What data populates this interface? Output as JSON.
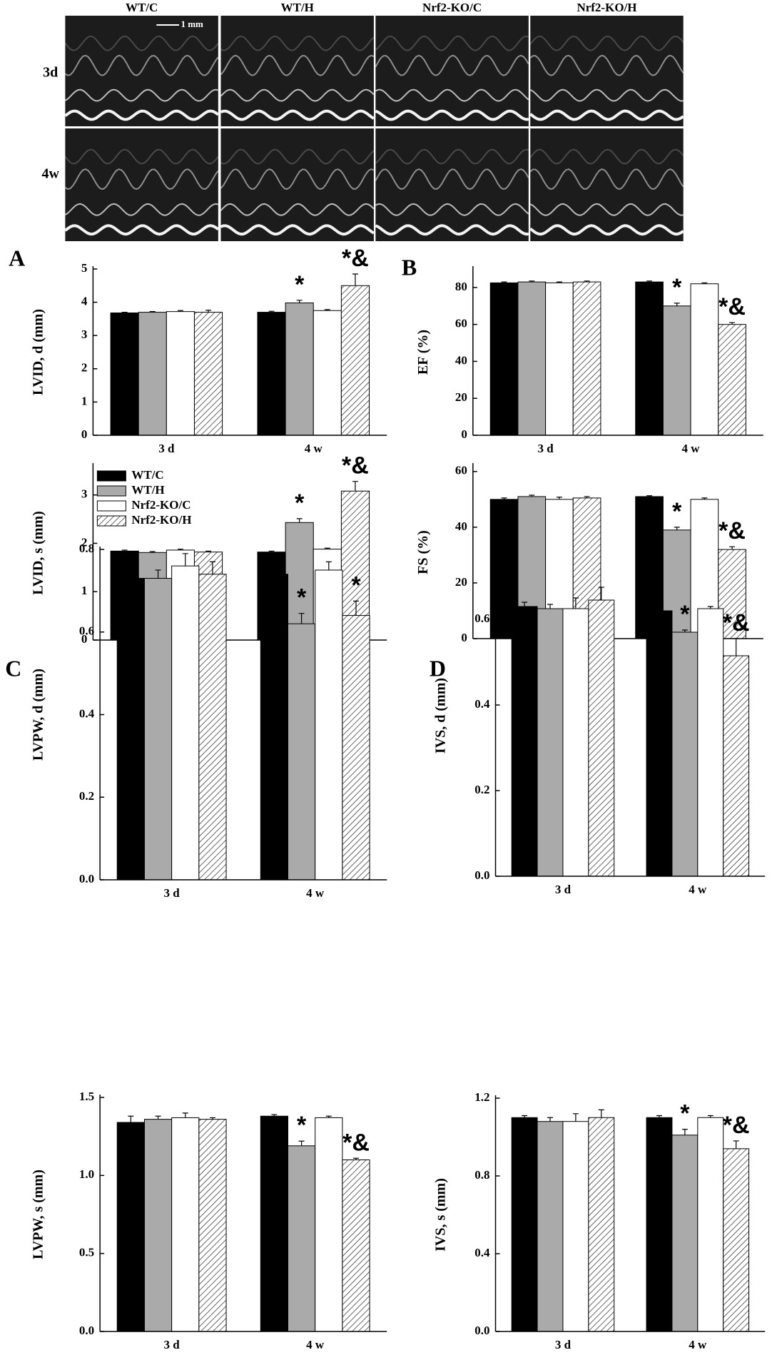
{
  "image_panel": {
    "columns": [
      "WT/C",
      "WT/H",
      "Nrf2-KO/C",
      "Nrf2-KO/H"
    ],
    "rows": [
      "3d",
      "4w"
    ],
    "scale_bar": "1 mm"
  },
  "panels": [
    "A",
    "B",
    "C",
    "D"
  ],
  "chart_data": [
    {
      "type": "bar",
      "y_label": "LVID, d (mm)",
      "categories": [
        "3 d",
        "4 w"
      ],
      "ylim": [
        0,
        5
      ],
      "yticks": [
        0,
        1,
        2,
        3,
        4,
        5
      ],
      "series": [
        {
          "color": "#000000",
          "values": [
            3.68,
            3.7
          ],
          "errors": [
            0.02,
            0.03
          ]
        },
        {
          "color": "#aaaaaa",
          "values": [
            3.7,
            3.98
          ],
          "errors": [
            0.02,
            0.08
          ]
        },
        {
          "color": "#ffffff",
          "values": [
            3.72,
            3.75
          ],
          "errors": [
            0.03,
            0.03
          ]
        },
        {
          "color": "#ffffff",
          "hatch": true,
          "values": [
            3.7,
            4.5
          ],
          "errors": [
            0.06,
            0.35
          ]
        }
      ],
      "annotations": [
        {
          "text": "*",
          "series": 1,
          "category": 1
        },
        {
          "text": "*&",
          "series": 3,
          "category": 1
        }
      ]
    },
    {
      "type": "bar",
      "y_label": "LVID, s (mm)",
      "categories": [
        "3 d",
        "4 w"
      ],
      "ylim": [
        0,
        3.6
      ],
      "yticks": [
        0,
        1,
        2,
        3
      ],
      "legend": "upper left",
      "series": [
        {
          "name": "WT/C",
          "color": "#000000",
          "values": [
            1.84,
            1.82
          ],
          "errors": [
            0.02,
            0.02
          ]
        },
        {
          "name": "WT/H",
          "color": "#aaaaaa",
          "values": [
            1.81,
            2.43
          ],
          "errors": [
            0.02,
            0.08
          ]
        },
        {
          "name": "Nrf2-KO/C",
          "color": "#ffffff",
          "values": [
            1.86,
            1.88
          ],
          "errors": [
            0.02,
            0.02
          ]
        },
        {
          "name": "Nrf2-KO/H",
          "color": "#ffffff",
          "hatch": true,
          "values": [
            1.82,
            3.08
          ],
          "errors": [
            0.02,
            0.2
          ]
        }
      ],
      "annotations": [
        {
          "text": "*",
          "series": 1,
          "category": 1
        },
        {
          "text": "*&",
          "series": 3,
          "category": 1
        }
      ]
    },
    {
      "type": "bar",
      "y_label": "EF (%)",
      "categories": [
        "3 d",
        "4 w"
      ],
      "ylim": [
        0,
        90
      ],
      "yticks": [
        0,
        20,
        40,
        60,
        80
      ],
      "series": [
        {
          "color": "#000000",
          "values": [
            82.5,
            83
          ],
          "errors": [
            0.5,
            0.5
          ]
        },
        {
          "color": "#aaaaaa",
          "values": [
            83,
            70
          ],
          "errors": [
            0.5,
            1.5
          ]
        },
        {
          "color": "#ffffff",
          "values": [
            82.5,
            82
          ],
          "errors": [
            0.5,
            0.5
          ]
        },
        {
          "color": "#ffffff",
          "hatch": true,
          "values": [
            83,
            60
          ],
          "errors": [
            0.5,
            1
          ]
        }
      ],
      "annotations": [
        {
          "text": "*",
          "series": 1,
          "category": 1
        },
        {
          "text": "*&",
          "series": 3,
          "category": 1
        }
      ]
    },
    {
      "type": "bar",
      "y_label": "FS (%)",
      "categories": [
        "3 d",
        "4 w"
      ],
      "ylim": [
        0,
        62
      ],
      "yticks": [
        0,
        20,
        40,
        60
      ],
      "series": [
        {
          "color": "#000000",
          "values": [
            50,
            51
          ],
          "errors": [
            0.5,
            0.3
          ]
        },
        {
          "color": "#aaaaaa",
          "values": [
            51,
            39
          ],
          "errors": [
            0.5,
            1
          ]
        },
        {
          "color": "#ffffff",
          "values": [
            50,
            50
          ],
          "errors": [
            0.8,
            0.5
          ]
        },
        {
          "color": "#ffffff",
          "hatch": true,
          "values": [
            50.5,
            32
          ],
          "errors": [
            0.5,
            1
          ]
        }
      ],
      "annotations": [
        {
          "text": "*",
          "series": 1,
          "category": 1
        },
        {
          "text": "*&",
          "series": 3,
          "category": 1
        }
      ]
    },
    {
      "type": "bar",
      "y_label": "LVPW, d (mm)",
      "categories": [
        "3 d",
        "4 w"
      ],
      "ylim": [
        0,
        0.8
      ],
      "yticks": [
        {
          "value": 0,
          "label": "0.0"
        },
        0.2,
        0.4,
        0.6,
        0.8
      ],
      "series": [
        {
          "color": "#000000",
          "values": [
            0.73,
            0.74
          ],
          "errors": [
            0.01,
            0.01
          ]
        },
        {
          "color": "#aaaaaa",
          "values": [
            0.73,
            0.62
          ],
          "errors": [
            0.02,
            0.025
          ]
        },
        {
          "color": "#ffffff",
          "values": [
            0.76,
            0.75
          ],
          "errors": [
            0.03,
            0.02
          ]
        },
        {
          "color": "#ffffff",
          "hatch": true,
          "values": [
            0.74,
            0.64
          ],
          "errors": [
            0.03,
            0.035
          ]
        }
      ],
      "annotations": [
        {
          "text": "*",
          "series": 1,
          "category": 1
        },
        {
          "text": "*",
          "series": 3,
          "category": 1
        }
      ]
    },
    {
      "type": "bar",
      "y_label": "LVPW, s (mm)",
      "categories": [
        "3 d",
        "4 w"
      ],
      "ylim": [
        0,
        1.5
      ],
      "yticks": [
        {
          "value": 0,
          "label": "0.0"
        },
        0.5,
        {
          "value": 1,
          "label": "1.0"
        },
        1.5
      ],
      "series": [
        {
          "color": "#000000",
          "values": [
            1.34,
            1.38
          ],
          "errors": [
            0.04,
            0.01
          ]
        },
        {
          "color": "#aaaaaa",
          "values": [
            1.36,
            1.19
          ],
          "errors": [
            0.02,
            0.03
          ]
        },
        {
          "color": "#ffffff",
          "values": [
            1.37,
            1.37
          ],
          "errors": [
            0.03,
            0.01
          ]
        },
        {
          "color": "#ffffff",
          "hatch": true,
          "values": [
            1.36,
            1.1
          ],
          "errors": [
            0.01,
            0.01
          ]
        }
      ],
      "annotations": [
        {
          "text": "*",
          "series": 1,
          "category": 1
        },
        {
          "text": "*&",
          "series": 3,
          "category": 1
        }
      ]
    },
    {
      "type": "bar",
      "y_label": "IVS, d (mm)",
      "categories": [
        "3 d",
        "4 w"
      ],
      "ylim": [
        0,
        0.75
      ],
      "yticks": [
        {
          "value": 0,
          "label": "0.0"
        },
        0.2,
        0.4,
        0.6
      ],
      "series": [
        {
          "color": "#000000",
          "values": [
            0.63,
            0.62
          ],
          "errors": [
            0.01,
            0.02
          ]
        },
        {
          "color": "#aaaaaa",
          "values": [
            0.625,
            0.57
          ],
          "errors": [
            0.01,
            0.005
          ]
        },
        {
          "color": "#ffffff",
          "values": [
            0.625,
            0.625
          ],
          "errors": [
            0.025,
            0.005
          ]
        },
        {
          "color": "#ffffff",
          "hatch": true,
          "values": [
            0.645,
            0.515
          ],
          "errors": [
            0.03,
            0.04
          ]
        }
      ],
      "annotations": [
        {
          "text": "*",
          "series": 1,
          "category": 1
        },
        {
          "text": "*&",
          "series": 3,
          "category": 1
        }
      ]
    },
    {
      "type": "bar",
      "y_label": "IVS, s (mm)",
      "categories": [
        "3 d",
        "4 w"
      ],
      "ylim": [
        0,
        1.2
      ],
      "yticks": [
        {
          "value": 0,
          "label": "0.0"
        },
        0.4,
        0.8,
        1.2
      ],
      "series": [
        {
          "color": "#000000",
          "values": [
            1.1,
            1.1
          ],
          "errors": [
            0.01,
            0.01
          ]
        },
        {
          "color": "#aaaaaa",
          "values": [
            1.08,
            1.01
          ],
          "errors": [
            0.02,
            0.03
          ]
        },
        {
          "color": "#ffffff",
          "values": [
            1.08,
            1.1
          ],
          "errors": [
            0.04,
            0.01
          ]
        },
        {
          "color": "#ffffff",
          "hatch": true,
          "values": [
            1.1,
            0.94
          ],
          "errors": [
            0.04,
            0.04
          ]
        }
      ],
      "annotations": [
        {
          "text": "*",
          "series": 1,
          "category": 1
        },
        {
          "text": "*&",
          "series": 3,
          "category": 1
        }
      ]
    }
  ]
}
